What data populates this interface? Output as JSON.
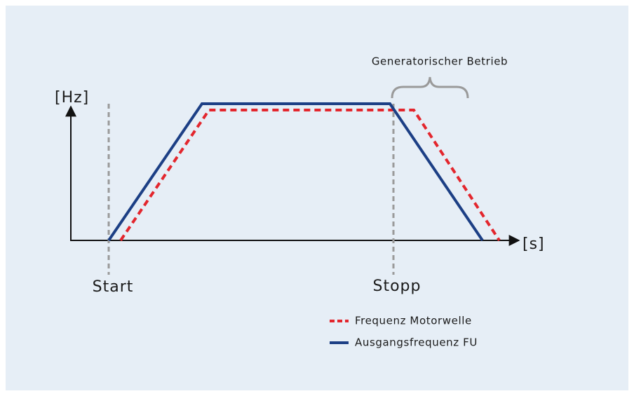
{
  "diagram": {
    "y_axis_label": "[Hz]",
    "x_axis_label": "[s]",
    "markers": [
      "Start",
      "Stopp"
    ],
    "annotation": "Generatorischer Betrieb",
    "legend": [
      "Frequenz Motorwelle",
      "Ausgangsfrequenz FU"
    ]
  }
}
